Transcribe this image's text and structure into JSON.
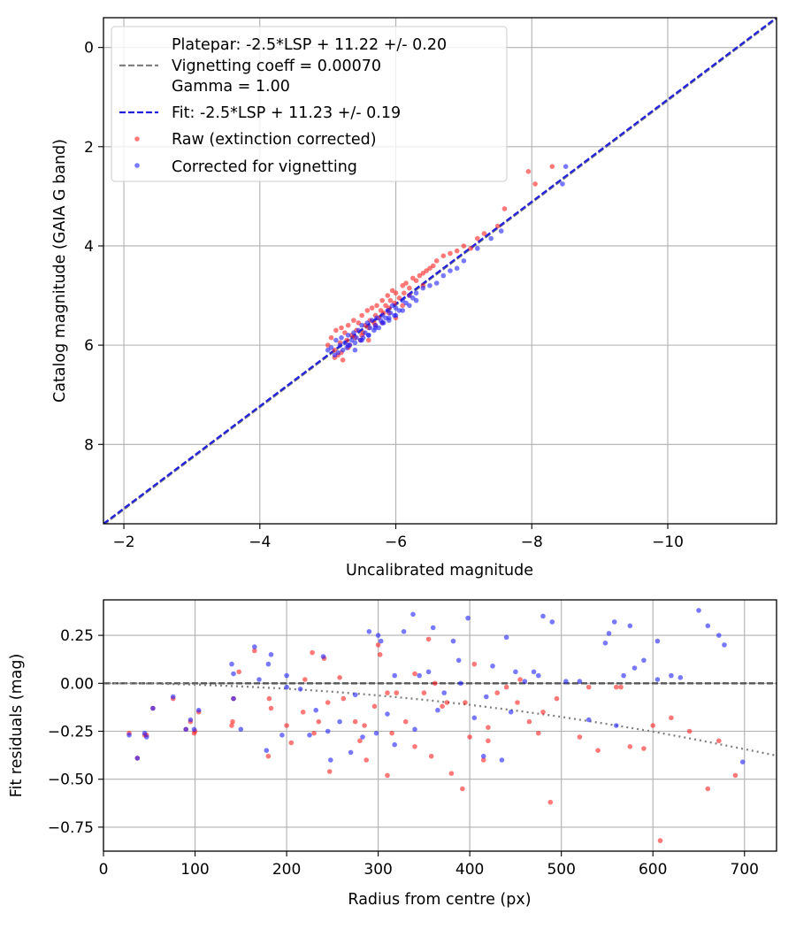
{
  "chart_data": [
    {
      "type": "scatter",
      "xlabel": "Uncalibrated magnitude",
      "ylabel": "Catalog magnitude (GAIA G band)",
      "xlim": [
        -1.7,
        -11.6
      ],
      "ylim": [
        9.6,
        -0.6
      ],
      "x_inverted": true,
      "y_inverted": true,
      "xticks": [
        -2,
        -4,
        -6,
        -8,
        -10
      ],
      "xtick_labels": [
        "−2",
        "−4",
        "−6",
        "−8",
        "−10"
      ],
      "yticks": [
        0,
        2,
        4,
        6,
        8
      ],
      "ytick_labels": [
        "0",
        "2",
        "4",
        "6",
        "8"
      ],
      "grid": true,
      "legend_position": "top-left",
      "lines": [
        {
          "name": "Platepar: -2.5*LSP + 11.22 +/- 0.20\nVignetting coeff = 0.00070\nGamma = 1.00",
          "label_lines": [
            "Platepar: -2.5*LSP + 11.22 +/- 0.20",
            "Vignetting coeff = 0.00070",
            "Gamma = 1.00"
          ],
          "style": "dashed",
          "color": "#808080",
          "x": [
            -1.7,
            -11.6
          ],
          "y": [
            9.62,
            -0.58
          ]
        },
        {
          "name": "Fit: -2.5*LSP + 11.23 +/- 0.19",
          "label_lines": [
            "Fit: -2.5*LSP + 11.23 +/- 0.19"
          ],
          "style": "dashed",
          "color": "#2222dd",
          "x": [
            -1.7,
            -11.6
          ],
          "y": [
            9.6,
            -0.6
          ]
        }
      ],
      "series": [
        {
          "name": "Raw (extinction corrected)",
          "color": "#ff2020",
          "x": [
            -5.0,
            -5.05,
            -5.1,
            -5.12,
            -5.15,
            -5.18,
            -5.2,
            -5.22,
            -5.25,
            -5.28,
            -5.3,
            -5.32,
            -5.35,
            -5.38,
            -5.4,
            -5.42,
            -5.45,
            -5.48,
            -5.5,
            -5.52,
            -5.55,
            -5.58,
            -5.6,
            -5.62,
            -5.65,
            -5.68,
            -5.7,
            -5.72,
            -5.75,
            -5.78,
            -5.8,
            -5.82,
            -5.85,
            -5.88,
            -5.9,
            -5.92,
            -5.95,
            -5.98,
            -6.0,
            -6.05,
            -6.1,
            -6.12,
            -6.15,
            -6.2,
            -6.25,
            -6.3,
            -6.35,
            -6.4,
            -6.45,
            -6.5,
            -6.55,
            -6.6,
            -6.7,
            -6.8,
            -6.9,
            -7.0,
            -7.1,
            -7.2,
            -7.3,
            -7.5,
            -7.6,
            -7.95,
            -8.05,
            -8.3,
            -5.1,
            -5.3,
            -5.5,
            -5.7,
            -5.9,
            -6.1,
            -5.2,
            -5.6,
            -5.8,
            -6.0,
            -6.2,
            -6.4
          ],
          "y": [
            6.0,
            5.85,
            6.1,
            5.7,
            6.2,
            5.95,
            5.65,
            6.3,
            5.75,
            5.9,
            5.6,
            6.0,
            5.8,
            5.5,
            5.85,
            5.7,
            5.55,
            5.9,
            5.4,
            5.75,
            5.6,
            5.3,
            5.65,
            5.5,
            5.25,
            5.55,
            5.4,
            5.2,
            5.45,
            5.3,
            5.1,
            5.35,
            5.2,
            5.0,
            5.25,
            5.1,
            4.9,
            5.15,
            4.95,
            5.05,
            4.8,
            4.95,
            4.75,
            4.85,
            4.65,
            4.7,
            4.6,
            4.55,
            4.5,
            4.45,
            4.4,
            4.3,
            4.2,
            4.15,
            4.1,
            4.0,
            4.05,
            3.85,
            3.75,
            3.6,
            3.25,
            2.5,
            2.75,
            2.4,
            6.25,
            6.05,
            5.8,
            5.6,
            5.35,
            5.2,
            6.15,
            5.9,
            5.55,
            5.45,
            5.0,
            4.8
          ]
        },
        {
          "name": "Corrected for vignetting",
          "color": "#2020ff",
          "x": [
            -5.0,
            -5.05,
            -5.1,
            -5.12,
            -5.15,
            -5.18,
            -5.2,
            -5.22,
            -5.25,
            -5.28,
            -5.3,
            -5.32,
            -5.35,
            -5.38,
            -5.4,
            -5.42,
            -5.45,
            -5.48,
            -5.5,
            -5.52,
            -5.55,
            -5.58,
            -5.6,
            -5.62,
            -5.65,
            -5.68,
            -5.7,
            -5.72,
            -5.75,
            -5.78,
            -5.8,
            -5.82,
            -5.85,
            -5.88,
            -5.9,
            -5.92,
            -5.95,
            -5.98,
            -6.0,
            -6.05,
            -6.1,
            -6.15,
            -6.2,
            -6.25,
            -6.3,
            -6.4,
            -6.5,
            -6.6,
            -6.7,
            -6.8,
            -6.9,
            -7.0,
            -7.2,
            -7.4,
            -7.55,
            -8.45,
            -8.5,
            -5.3,
            -5.5,
            -5.7,
            -5.9,
            -6.1,
            -6.3,
            -5.4,
            -5.6,
            -5.8,
            -6.0,
            -6.2
          ],
          "y": [
            6.1,
            6.05,
            6.2,
            5.9,
            6.15,
            6.0,
            5.85,
            6.1,
            5.95,
            6.05,
            5.8,
            6.0,
            5.9,
            5.75,
            5.95,
            5.85,
            5.7,
            5.9,
            5.6,
            5.85,
            5.75,
            5.55,
            5.8,
            5.65,
            5.5,
            5.7,
            5.6,
            5.45,
            5.65,
            5.5,
            5.4,
            5.55,
            5.45,
            5.3,
            5.45,
            5.35,
            5.2,
            5.4,
            5.25,
            5.3,
            5.1,
            5.15,
            5.0,
            5.05,
            4.95,
            4.85,
            4.8,
            4.75,
            4.6,
            4.5,
            4.45,
            4.3,
            4.05,
            3.85,
            3.7,
            2.75,
            2.4,
            6.0,
            5.9,
            5.65,
            5.5,
            5.3,
            5.1,
            6.1,
            5.8,
            5.55,
            5.4,
            5.2
          ]
        }
      ]
    },
    {
      "type": "scatter",
      "xlabel": "Radius from centre (px)",
      "ylabel": "Fit residuals (mag)",
      "xlim": [
        0,
        735
      ],
      "ylim": [
        -0.875,
        0.435
      ],
      "xticks": [
        0,
        100,
        200,
        300,
        400,
        500,
        600,
        700
      ],
      "xtick_labels": [
        "0",
        "100",
        "200",
        "300",
        "400",
        "500",
        "600",
        "700"
      ],
      "yticks": [
        0.25,
        0.0,
        -0.25,
        -0.5,
        -0.75
      ],
      "ytick_labels": [
        "0.25",
        "0.00",
        "−0.25",
        "−0.50",
        "−0.75"
      ],
      "grid": true,
      "lines": [
        {
          "style": "dashed",
          "color": "#555555",
          "x": [
            0,
            735
          ],
          "y": [
            0,
            0
          ]
        },
        {
          "style": "dotted",
          "color": "#808080",
          "x": [
            0,
            50,
            100,
            150,
            200,
            250,
            300,
            350,
            400,
            450,
            500,
            550,
            600,
            650,
            700,
            735
          ],
          "y": [
            0,
            -0.001,
            -0.007,
            -0.016,
            -0.028,
            -0.044,
            -0.063,
            -0.086,
            -0.112,
            -0.142,
            -0.175,
            -0.212,
            -0.252,
            -0.296,
            -0.343,
            -0.377
          ]
        }
      ],
      "series": [
        {
          "name": "Raw (extinction corrected)",
          "color": "#ff2020",
          "x": [
            28,
            37,
            45,
            47,
            54,
            76,
            90,
            95,
            99,
            104,
            141,
            142,
            148,
            165,
            180,
            181,
            183,
            200,
            220,
            228,
            230,
            235,
            241,
            245,
            247,
            258,
            275,
            280,
            287,
            296,
            300,
            302,
            310,
            315,
            320,
            330,
            340,
            350,
            355,
            358,
            362,
            375,
            380,
            392,
            400,
            405,
            415,
            420,
            430,
            440,
            452,
            465,
            475,
            488,
            495,
            520,
            540,
            560,
            575,
            590,
            600,
            620,
            640,
            660,
            672,
            690,
            608,
            565,
            530,
            480,
            455,
            420,
            395,
            370,
            340,
            310,
            285,
            262,
            218,
            205,
            140,
            100
          ],
          "y": [
            -0.26,
            -0.39,
            -0.27,
            -0.27,
            -0.13,
            -0.08,
            -0.24,
            -0.2,
            -0.26,
            -0.15,
            -0.2,
            -0.08,
            0.06,
            0.17,
            -0.38,
            -0.08,
            -0.13,
            -0.22,
            0.02,
            0.16,
            -0.26,
            -0.2,
            0.13,
            -0.1,
            -0.46,
            0.03,
            -0.2,
            -0.3,
            -0.4,
            -0.12,
            0.2,
            0.15,
            -0.48,
            -0.26,
            -0.05,
            -0.2,
            0.05,
            -0.05,
            0.23,
            -0.38,
            0.0,
            -0.1,
            -0.47,
            -0.55,
            -0.28,
            0.1,
            -0.4,
            -0.23,
            -0.05,
            -0.02,
            -0.1,
            -0.2,
            -0.26,
            -0.62,
            -0.08,
            -0.28,
            -0.35,
            -0.02,
            -0.33,
            -0.34,
            -0.22,
            -0.18,
            -0.25,
            -0.55,
            -0.3,
            -0.48,
            -0.82,
            -0.02,
            -0.02,
            -0.15,
            0.02,
            -0.3,
            -0.1,
            -0.12,
            -0.33,
            -0.05,
            -0.22,
            -0.08,
            -0.15,
            -0.31,
            -0.22,
            -0.25
          ]
        },
        {
          "name": "Corrected for vignetting",
          "color": "#2020ff",
          "x": [
            28,
            37,
            45,
            47,
            54,
            76,
            90,
            95,
            99,
            104,
            140,
            142,
            150,
            165,
            178,
            180,
            183,
            195,
            200,
            215,
            225,
            232,
            240,
            248,
            258,
            275,
            283,
            290,
            300,
            303,
            310,
            318,
            328,
            338,
            345,
            355,
            360,
            372,
            382,
            390,
            398,
            405,
            415,
            425,
            435,
            440,
            450,
            460,
            470,
            480,
            490,
            505,
            520,
            548,
            552,
            558,
            568,
            575,
            590,
            605,
            620,
            630,
            650,
            660,
            672,
            678,
            698,
            605,
            580,
            560,
            530,
            475,
            445,
            418,
            388,
            365,
            340,
            318,
            298,
            270,
            245,
            200,
            170,
            142
          ],
          "y": [
            -0.27,
            -0.39,
            -0.26,
            -0.28,
            -0.13,
            -0.07,
            -0.24,
            -0.19,
            -0.24,
            -0.14,
            0.1,
            0.05,
            -0.24,
            0.19,
            -0.35,
            0.1,
            0.15,
            -0.27,
            0.04,
            -0.03,
            -0.27,
            -0.14,
            0.14,
            -0.4,
            -0.2,
            -0.06,
            -0.28,
            0.27,
            0.25,
            0.22,
            -0.16,
            0.04,
            0.27,
            0.36,
            0.04,
            0.06,
            0.29,
            -0.05,
            0.22,
            0.0,
            0.34,
            -0.18,
            -0.38,
            0.09,
            -0.4,
            0.24,
            0.06,
            0.01,
            0.06,
            0.35,
            0.32,
            0.01,
            0.01,
            0.21,
            0.26,
            0.32,
            0.04,
            0.3,
            0.12,
            0.22,
            0.04,
            0.03,
            0.38,
            0.3,
            0.25,
            0.2,
            -0.41,
            0.02,
            0.08,
            -0.22,
            -0.19,
            0.04,
            -0.15,
            -0.07,
            0.12,
            -0.14,
            -0.24,
            -0.32,
            -0.26,
            -0.36,
            -0.25,
            -0.02,
            0.02,
            -0.08
          ]
        }
      ]
    }
  ]
}
